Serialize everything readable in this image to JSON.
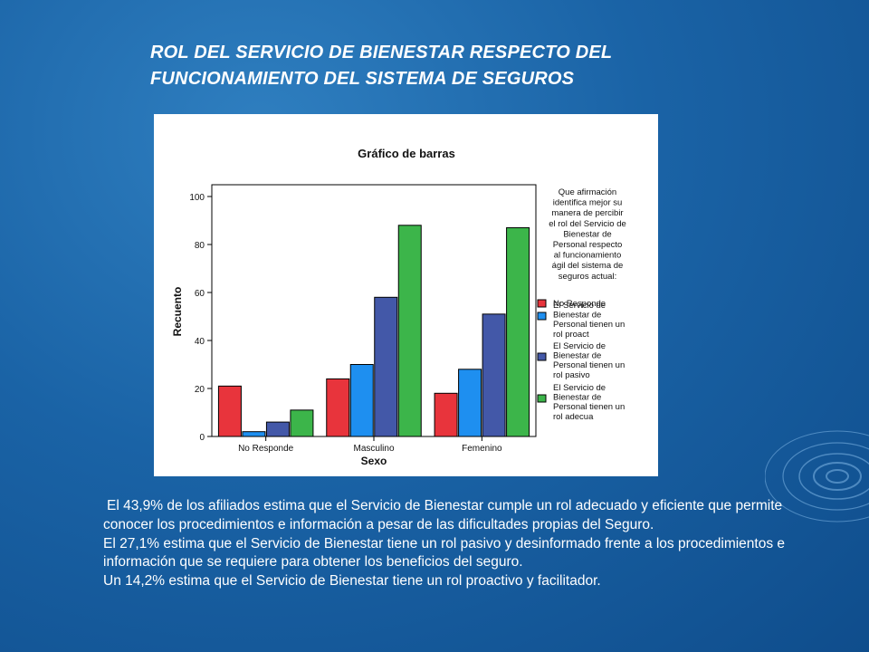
{
  "slide": {
    "title_line1": "ROL DEL SERVICIO DE BIENESTAR RESPECTO DEL",
    "title_line2": "FUNCIONAMIENTO DEL SISTEMA DE SEGUROS",
    "paragraphs": [
      "El  43,9% de los afiliados estima que el Servicio de Bienestar cumple un rol adecuado y eficiente que permite conocer los procedimientos e información a pesar de las dificultades propias del Seguro.",
      "El 27,1% estima que el Servicio de Bienestar tiene un rol pasivo y desinformado frente a los procedimientos e información que se requiere para obtener los beneficios del seguro.",
      "Un 14,2% estima que el Servicio de Bienestar tiene un rol proactivo y facilitador."
    ]
  },
  "chart_data": {
    "type": "bar",
    "title": "Gráfico de barras",
    "xlabel": "Sexo",
    "ylabel": "Recuento",
    "categories": [
      "No Responde",
      "Masculino",
      "Femenino"
    ],
    "ylim": [
      0,
      100
    ],
    "yticks": [
      "0",
      "20",
      "40",
      "60",
      "80",
      "100"
    ],
    "grid": false,
    "legend_position": "right",
    "legend_title_lines": [
      "Que afirmación",
      "identifica mejor su",
      "manera de percibir",
      "el rol del Servicio de",
      "Bienestar de",
      "Personal respecto",
      "al funcionamiento",
      "ágil del sistema de",
      "seguros actual:"
    ],
    "series": [
      {
        "name": "No Responde",
        "label_lines": [
          "No Responde"
        ],
        "color": "#e8343c",
        "values": [
          21,
          24,
          18
        ]
      },
      {
        "name": "El Servicio de Bienestar de Personal tienen un rol proact",
        "label_lines": [
          "El Servicio de",
          "Bienestar de",
          "Personal tienen un",
          "rol proact"
        ],
        "color": "#1e8ff0",
        "values": [
          2,
          30,
          28
        ]
      },
      {
        "name": "El Servicio de Bienestar de Personal tienen un rol pasivo",
        "label_lines": [
          "El Servicio de",
          "Bienestar de",
          "Personal tienen un",
          "rol pasivo"
        ],
        "color": "#4358a8",
        "values": [
          6,
          58,
          51
        ]
      },
      {
        "name": "El Servicio de Bienestar de Personal tienen un rol adecua",
        "label_lines": [
          "El Servicio de",
          "Bienestar de",
          "Personal tienen un",
          "rol adecua"
        ],
        "color": "#3cb54a",
        "values": [
          11,
          88,
          87
        ]
      }
    ]
  }
}
